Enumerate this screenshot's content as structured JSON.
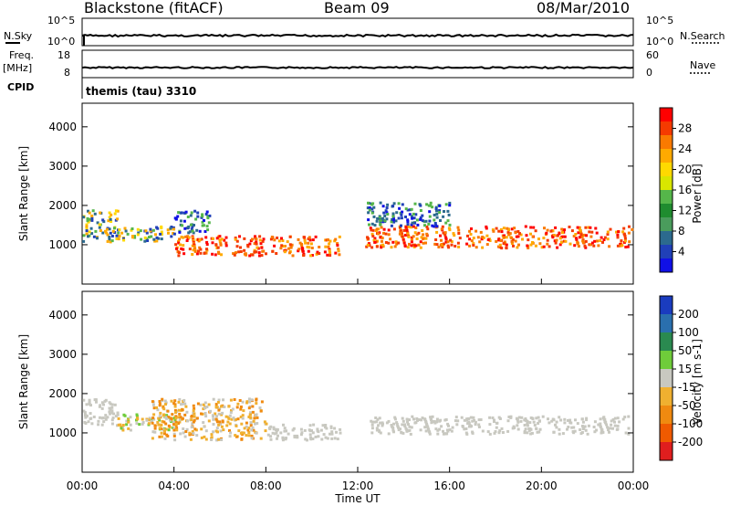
{
  "chart_data": {
    "type": "heatmap",
    "header": {
      "station": "Blackstone (fitACF)",
      "beam": "Beam 09",
      "date": "08/Mar/2010",
      "cpid_text": "themis (tau) 3310"
    },
    "time_axis": {
      "label": "Time UT",
      "range_hours": [
        0,
        24
      ],
      "ticks": [
        "00:00",
        "04:00",
        "08:00",
        "12:00",
        "16:00",
        "20:00",
        "00:00"
      ]
    },
    "strips": {
      "nsky": {
        "label": "N.Sky",
        "right_label": "N.Search",
        "left_ticks": [
          "10^5",
          "10^0"
        ],
        "right_ticks": [
          "10^5",
          "10^0"
        ]
      },
      "freq": {
        "label_line1": "Freq.",
        "label_line2": "[MHz]",
        "cpid_label": "CPID",
        "right_label": "Nave",
        "left_ticks": [
          "18",
          "8"
        ],
        "right_ticks": [
          "60",
          "0"
        ]
      }
    },
    "panels": [
      {
        "name": "power",
        "ylabel": "Slant Range [km]",
        "ylim": [
          0,
          4600
        ],
        "yticks": [
          "4000",
          "3000",
          "2000",
          "1000"
        ],
        "ytick_values": [
          4000,
          3000,
          2000,
          1000
        ],
        "colorbar": {
          "label": "Power [dB]",
          "ticks": [
            "28",
            "24",
            "20",
            "16",
            "12",
            "8",
            "4"
          ],
          "colors": [
            "#ff0000",
            "#f53a00",
            "#fa7a00",
            "#ffaa00",
            "#ffd900",
            "#d9e600",
            "#55b64a",
            "#1f8c2f",
            "#4a9c5c",
            "#2c6a8e",
            "#2040b8",
            "#1010e6"
          ]
        },
        "echo_bands": [
          {
            "t": [
              0.0,
              1.5
            ],
            "r": [
              1100,
              1900
            ],
            "kind": "mixed"
          },
          {
            "t": [
              1.5,
              4.0
            ],
            "r": [
              1100,
              1500
            ],
            "kind": "mixed"
          },
          {
            "t": [
              4.0,
              11.2
            ],
            "r": [
              750,
              1250
            ],
            "kind": "strong"
          },
          {
            "t": [
              4.0,
              5.5
            ],
            "r": [
              1300,
              1900
            ],
            "kind": "weak"
          },
          {
            "t": [
              12.3,
              23.9
            ],
            "r": [
              950,
              1500
            ],
            "kind": "strong"
          },
          {
            "t": [
              12.3,
              16.0
            ],
            "r": [
              1500,
              2100
            ],
            "kind": "weak"
          }
        ]
      },
      {
        "name": "velocity",
        "ylabel": "Slant Range [km]",
        "ylim": [
          0,
          4600
        ],
        "yticks": [
          "4000",
          "3000",
          "2000",
          "1000"
        ],
        "ytick_values": [
          4000,
          3000,
          2000,
          1000
        ],
        "colorbar": {
          "label": "Velocity [m s-1]",
          "ticks": [
            "200",
            "100",
            "50",
            "15",
            "-15",
            "-50",
            "-100",
            "-200"
          ],
          "colors": [
            "#1a3cbf",
            "#2a6fae",
            "#2a8a50",
            "#6fcc3a",
            "#c8c8c0",
            "#f0b030",
            "#f08a10",
            "#f05a00",
            "#e01e1e"
          ]
        },
        "echo_bands": [
          {
            "t": [
              0.0,
              1.5
            ],
            "r": [
              1200,
              1900
            ],
            "kind": "ground"
          },
          {
            "t": [
              1.5,
              4.0
            ],
            "r": [
              1100,
              1500
            ],
            "kind": "mixed"
          },
          {
            "t": [
              3.0,
              8.0
            ],
            "r": [
              850,
              1900
            ],
            "kind": "negative"
          },
          {
            "t": [
              8.0,
              11.2
            ],
            "r": [
              850,
              1250
            ],
            "kind": "ground"
          },
          {
            "t": [
              12.3,
              23.9
            ],
            "r": [
              1000,
              1450
            ],
            "kind": "ground"
          }
        ]
      }
    ]
  }
}
